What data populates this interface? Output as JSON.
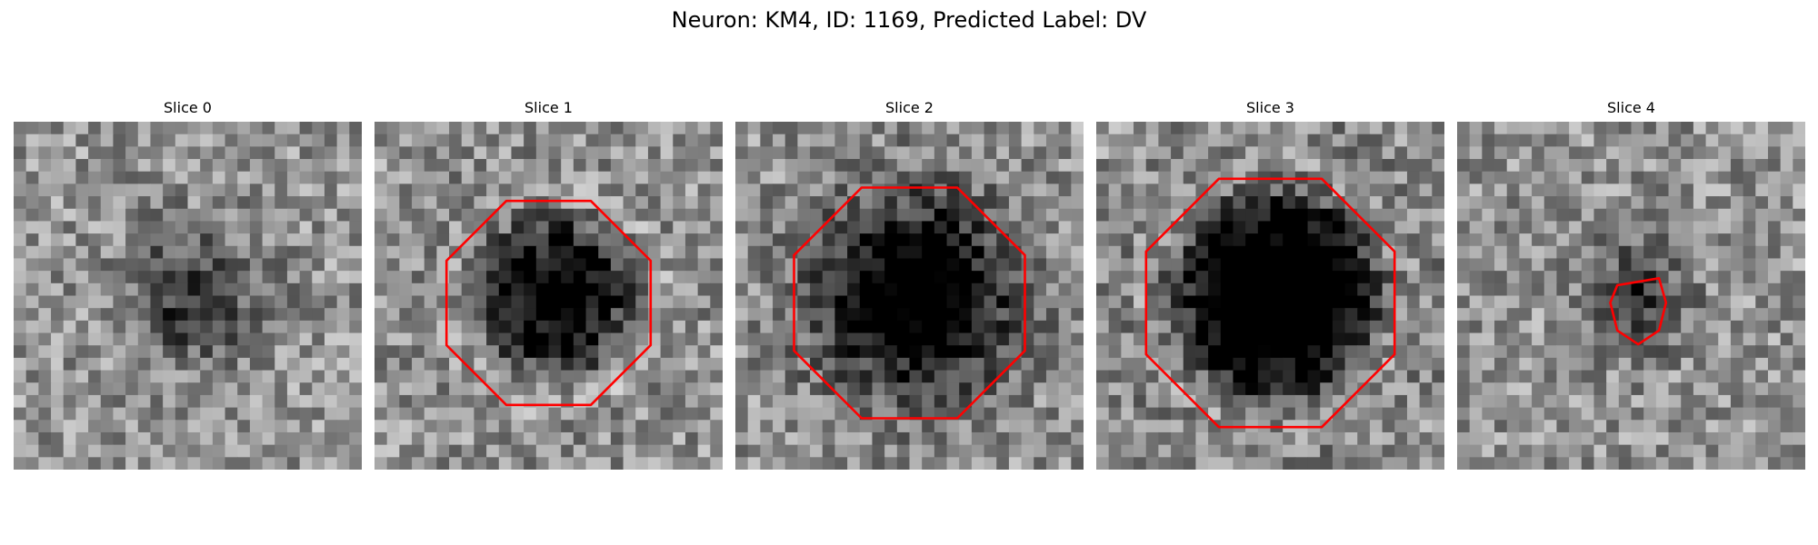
{
  "figure": {
    "title": "Neuron: KM4, ID: 1169, Predicted Label: DV"
  },
  "overlay_color": "#ff0000",
  "panels": [
    {
      "title": "Slice 0",
      "seed": 11,
      "center_darkness": 0.42,
      "radius": 0.17,
      "contour": false
    },
    {
      "title": "Slice 1",
      "seed": 23,
      "center_darkness": 0.68,
      "radius": 0.23,
      "contour": true,
      "contour_shape": "octagon"
    },
    {
      "title": "Slice 2",
      "seed": 37,
      "center_darkness": 0.82,
      "radius": 0.26,
      "contour": true,
      "contour_shape": "octagon"
    },
    {
      "title": "Slice 3",
      "seed": 41,
      "center_darkness": 0.98,
      "radius": 0.28,
      "contour": true,
      "contour_shape": "octagon"
    },
    {
      "title": "Slice 4",
      "seed": 59,
      "center_darkness": 0.38,
      "radius": 0.14,
      "contour": true,
      "contour_shape": "small-polygon"
    }
  ]
}
